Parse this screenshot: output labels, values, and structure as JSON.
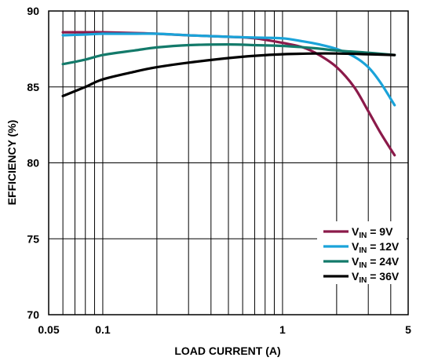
{
  "chart_data": {
    "type": "line",
    "xlabel": "LOAD CURRENT (A)",
    "ylabel": "EFFICIENCY (%)",
    "xscale": "log",
    "xlim": [
      0.05,
      5
    ],
    "ylim": [
      70,
      90
    ],
    "grid": true,
    "legend_position": "bottom-right",
    "x_tick_labels": [
      {
        "value": 0.05,
        "label": "0.05"
      },
      {
        "value": 0.1,
        "label": "0.1"
      },
      {
        "value": 1,
        "label": "1"
      },
      {
        "value": 5,
        "label": "5"
      }
    ],
    "y_tick_labels": [
      {
        "value": 70,
        "label": "70"
      },
      {
        "value": 75,
        "label": "75"
      },
      {
        "value": 80,
        "label": "80"
      },
      {
        "value": 85,
        "label": "85"
      },
      {
        "value": 90,
        "label": "90"
      }
    ],
    "series": [
      {
        "legend_main": "V",
        "legend_sub": "IN",
        "legend_rest": " = 9V",
        "color": "#8b1a4a",
        "x": [
          0.06,
          0.08,
          0.1,
          0.15,
          0.2,
          0.3,
          0.5,
          0.7,
          1.0,
          1.3,
          1.6,
          2.0,
          2.5,
          3.0,
          3.5,
          4.2
        ],
        "y": [
          88.6,
          88.6,
          88.6,
          88.55,
          88.5,
          88.4,
          88.3,
          88.2,
          87.9,
          87.6,
          87.1,
          86.3,
          85.0,
          83.4,
          82.0,
          80.5
        ]
      },
      {
        "legend_main": "V",
        "legend_sub": "IN",
        "legend_rest": " = 12V",
        "color": "#1aa3d9",
        "x": [
          0.06,
          0.08,
          0.1,
          0.15,
          0.2,
          0.3,
          0.5,
          0.7,
          1.0,
          1.3,
          1.6,
          2.0,
          2.5,
          3.0,
          3.5,
          4.2
        ],
        "y": [
          88.4,
          88.45,
          88.5,
          88.5,
          88.5,
          88.4,
          88.3,
          88.25,
          88.2,
          88.0,
          87.8,
          87.5,
          87.0,
          86.3,
          85.3,
          83.8
        ]
      },
      {
        "legend_main": "V",
        "legend_sub": "IN",
        "legend_rest": " = 24V",
        "color": "#137a6a",
        "x": [
          0.06,
          0.08,
          0.1,
          0.15,
          0.2,
          0.3,
          0.5,
          0.7,
          1.0,
          1.5,
          2.0,
          3.0,
          4.2
        ],
        "y": [
          86.5,
          86.8,
          87.1,
          87.4,
          87.6,
          87.75,
          87.8,
          87.75,
          87.7,
          87.55,
          87.4,
          87.25,
          87.1
        ]
      },
      {
        "legend_main": "V",
        "legend_sub": "IN",
        "legend_rest": " = 36V",
        "color": "#000000",
        "x": [
          0.06,
          0.08,
          0.1,
          0.15,
          0.2,
          0.3,
          0.5,
          0.7,
          1.0,
          1.5,
          2.0,
          3.0,
          4.2
        ],
        "y": [
          84.4,
          85.0,
          85.5,
          86.0,
          86.3,
          86.6,
          86.9,
          87.05,
          87.15,
          87.2,
          87.2,
          87.15,
          87.1
        ]
      }
    ]
  }
}
